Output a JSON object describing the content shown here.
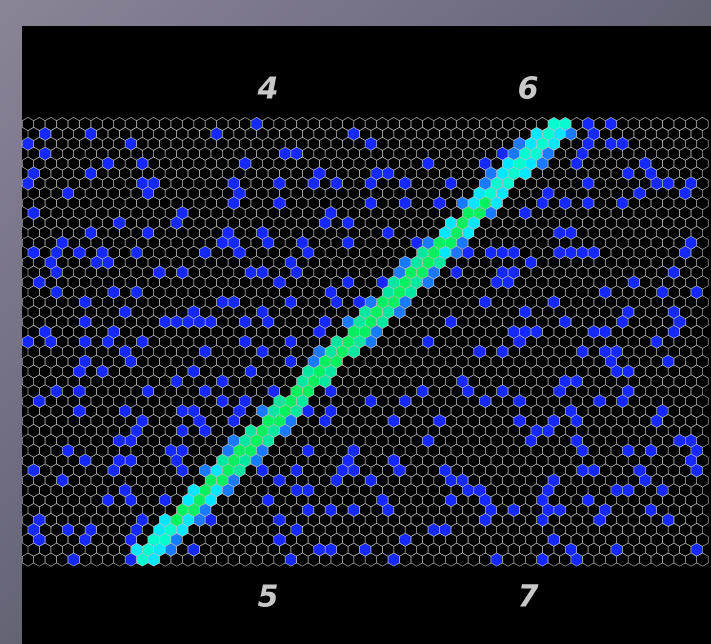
{
  "labels": [
    "4",
    "6",
    "5",
    "7"
  ]
}
